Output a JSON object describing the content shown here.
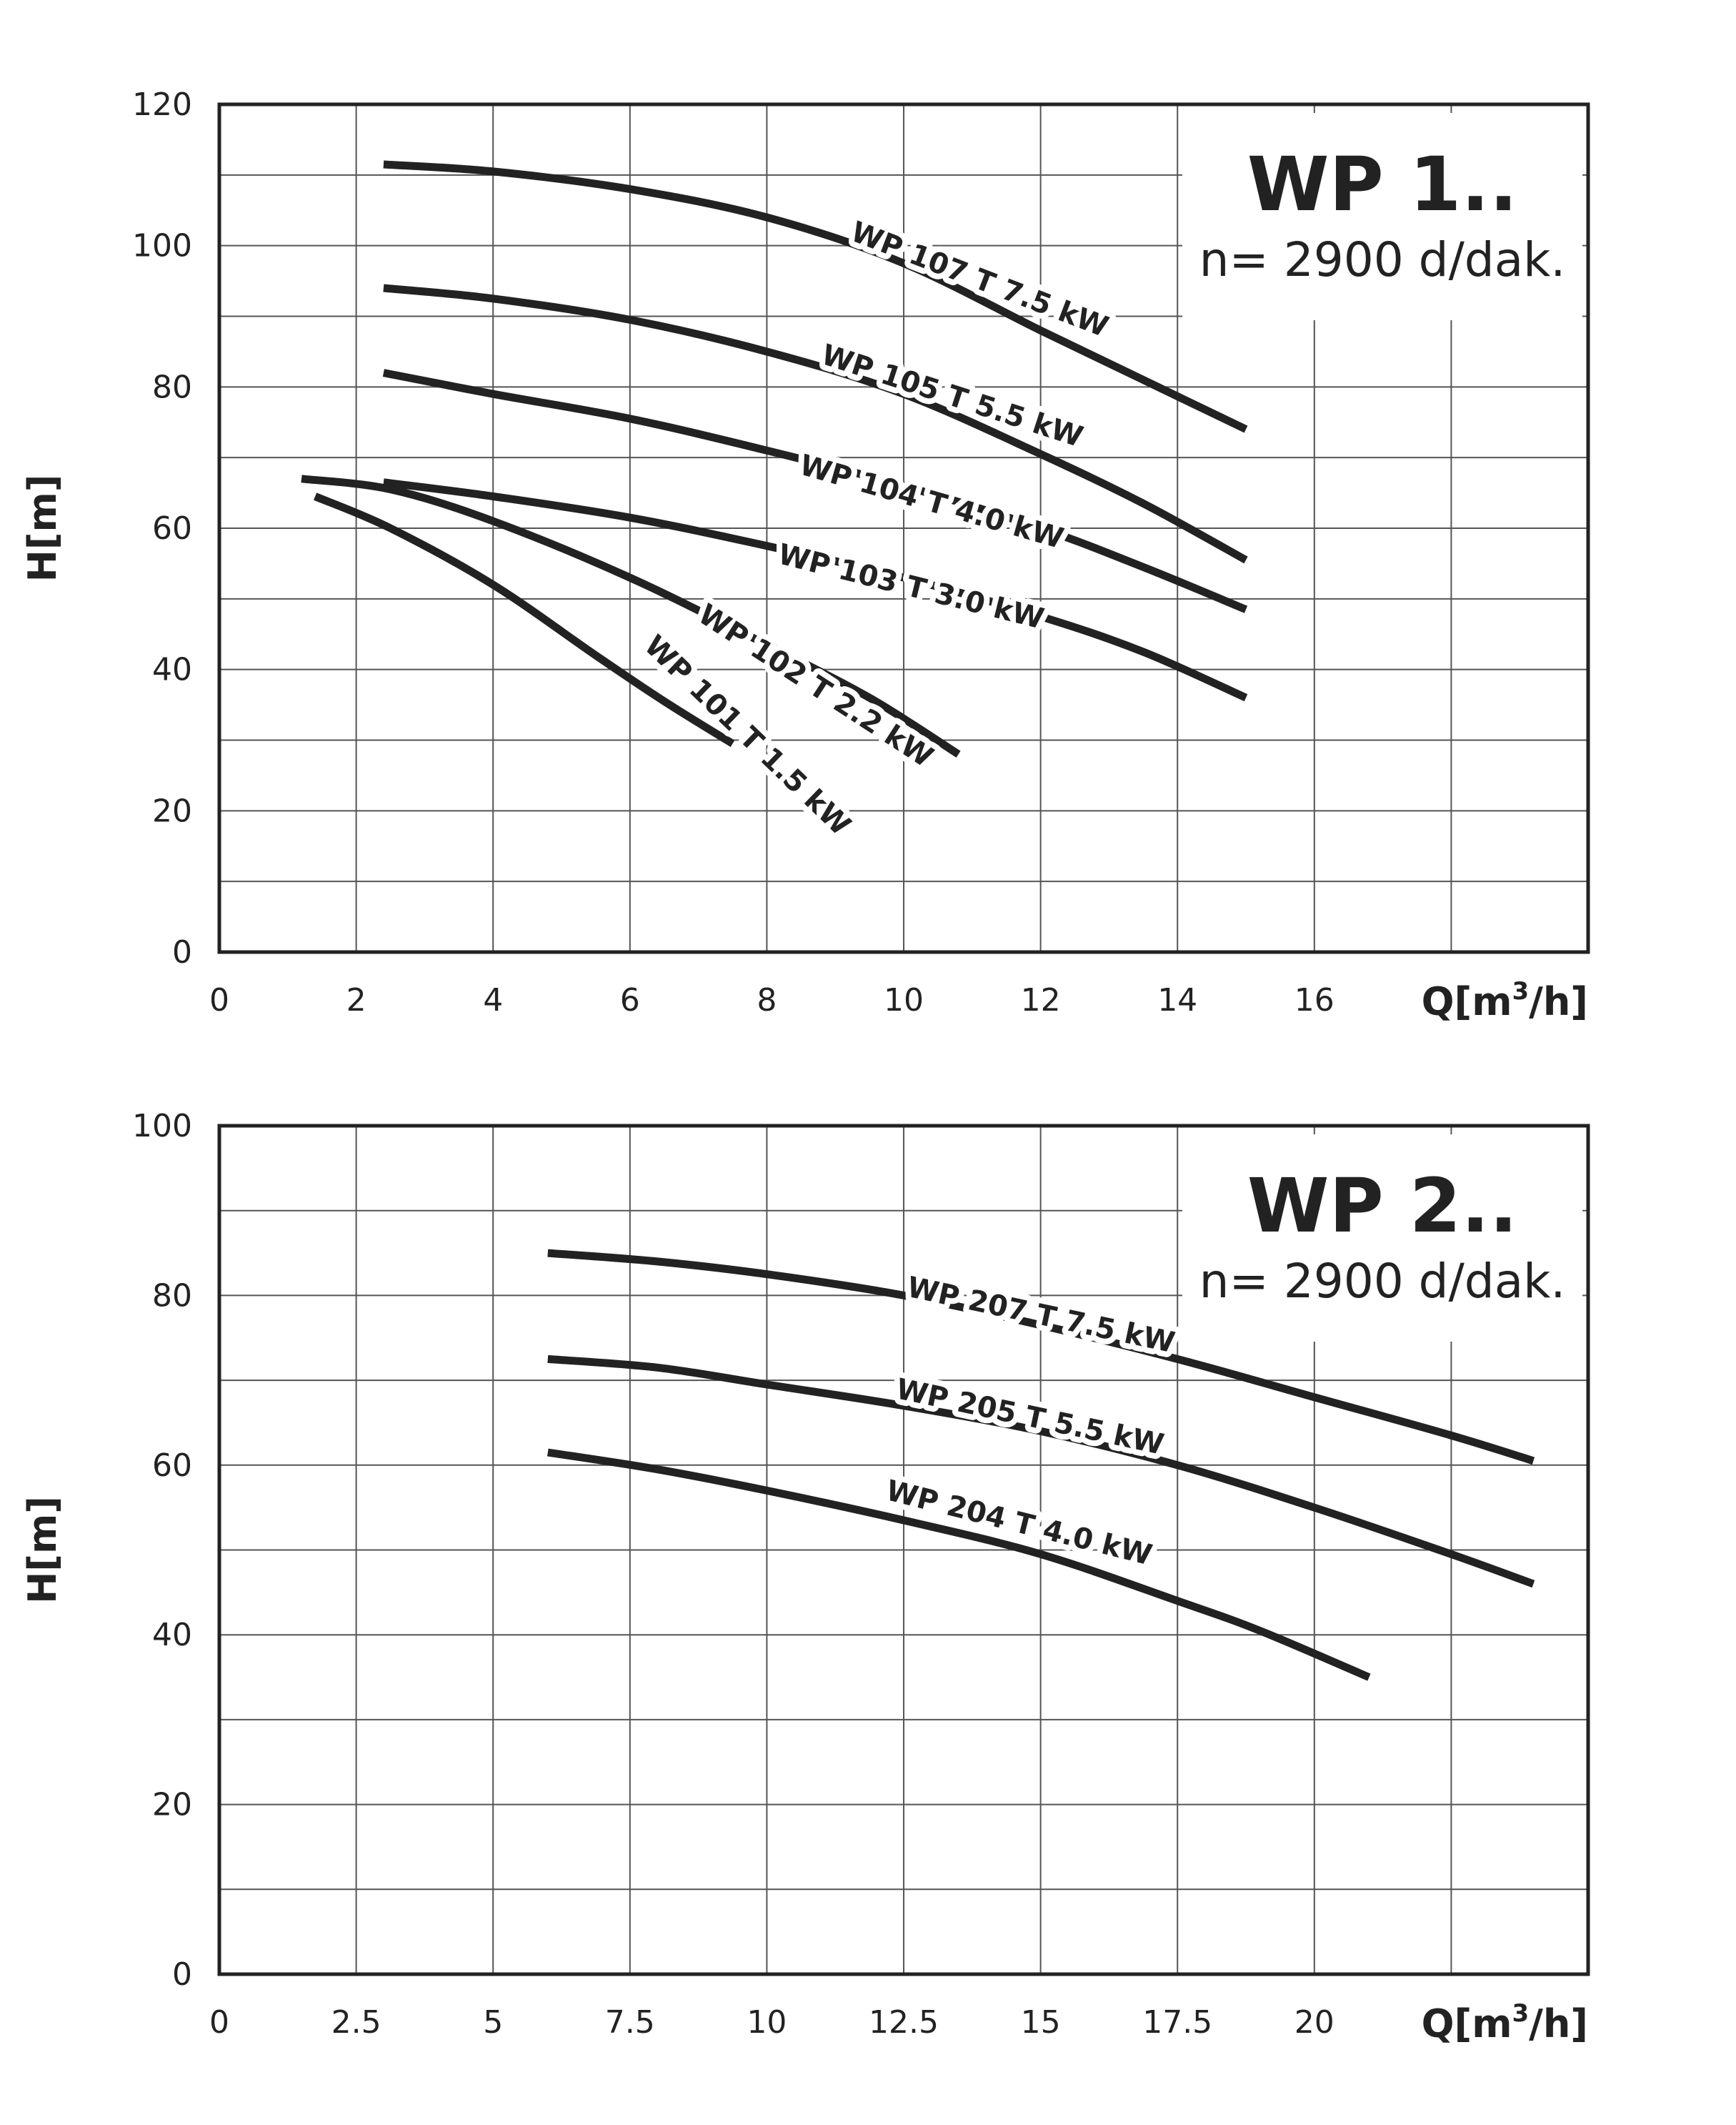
{
  "colors": {
    "ink": "#222222",
    "grid": "#555555",
    "background": "#ffffff"
  },
  "chart_data": [
    {
      "type": "line",
      "title": "WP 1..",
      "subtitle": "n= 2900 d/dak.",
      "xlabel": "Q[m",
      "xlabel_sup": "3",
      "xlabel_tail": "/h]",
      "ylabel": "H[m]",
      "xlim": [
        0,
        20
      ],
      "ylim": [
        0,
        120
      ],
      "x_ticks": [
        0,
        2,
        4,
        6,
        8,
        10,
        12,
        14,
        16
      ],
      "x_tick_labels": [
        "0",
        "2",
        "4",
        "6",
        "8",
        "10",
        "12",
        "14",
        "16"
      ],
      "y_ticks": [
        0,
        20,
        40,
        60,
        80,
        100,
        120
      ],
      "y_tick_labels": [
        "0",
        "20",
        "40",
        "60",
        "80",
        "100",
        "120"
      ],
      "x_grid": [
        0,
        2,
        4,
        6,
        8,
        10,
        12,
        14,
        16,
        18,
        20
      ],
      "y_grid": [
        0,
        10,
        20,
        30,
        40,
        50,
        60,
        70,
        80,
        90,
        100,
        110,
        120
      ],
      "grid": true,
      "series": [
        {
          "name": "WP 107 T 7.5 kW",
          "label_x": 11.1,
          "label_y": 95,
          "label_angle": 21,
          "x": [
            2.4,
            4,
            6,
            8,
            10,
            12,
            13.5,
            15
          ],
          "y": [
            111.5,
            110.5,
            108,
            104,
            97.5,
            88,
            81,
            74
          ]
        },
        {
          "name": "WP 105 T 5.5 kW",
          "label_x": 10.7,
          "label_y": 78.5,
          "label_angle": 18,
          "x": [
            2.4,
            4,
            6,
            8,
            10,
            12,
            13.5,
            15
          ],
          "y": [
            94,
            92.5,
            89.5,
            85,
            79,
            70.5,
            63.5,
            55.5
          ]
        },
        {
          "name": "WP 104 T 4.0 kW",
          "label_x": 10.4,
          "label_y": 63.5,
          "label_angle": 16,
          "x": [
            2.4,
            4,
            6,
            8,
            10,
            12,
            13.5,
            15
          ],
          "y": [
            82,
            79,
            75.5,
            71,
            66,
            60,
            54.5,
            48.5
          ]
        },
        {
          "name": "WP 103 T 3.0 kW",
          "label_x": 10.1,
          "label_y": 51.5,
          "label_angle": 14,
          "x": [
            2.4,
            4,
            6,
            8,
            10,
            12,
            13.5,
            15
          ],
          "y": [
            66.5,
            64.5,
            61.5,
            57.5,
            53,
            47.5,
            42.5,
            36
          ]
        },
        {
          "name": "WP 102 T 2.2 kW",
          "label_x": 8.7,
          "label_y": 37.5,
          "label_angle": 33,
          "x": [
            1.2,
            2.5,
            4,
            6,
            8,
            9.5,
            10.8
          ],
          "y": [
            67,
            65.5,
            61,
            53,
            43.5,
            36,
            28
          ]
        },
        {
          "name": "WP 101 T 1.5 kW",
          "label_x": 7.7,
          "label_y": 30.5,
          "label_angle": 44,
          "x": [
            1.4,
            2.5,
            4,
            5.5,
            6.5,
            7.5
          ],
          "y": [
            64.5,
            60,
            52,
            42,
            35.5,
            29.5
          ]
        }
      ]
    },
    {
      "type": "line",
      "title": "WP 2..",
      "subtitle": "n= 2900 d/dak.",
      "xlabel": "Q[m",
      "xlabel_sup": "3",
      "xlabel_tail": "/h]",
      "ylabel": "H[m]",
      "xlim": [
        0,
        25
      ],
      "ylim": [
        0,
        100
      ],
      "x_ticks": [
        0,
        2.5,
        5,
        7.5,
        10,
        12.5,
        15,
        17.5,
        20
      ],
      "x_tick_labels": [
        "0",
        "2.5",
        "5",
        "7.5",
        "10",
        "12.5",
        "15",
        "17.5",
        "20"
      ],
      "y_ticks": [
        0,
        20,
        40,
        60,
        80,
        100
      ],
      "y_tick_labels": [
        "0",
        "20",
        "40",
        "60",
        "80",
        "100"
      ],
      "x_grid": [
        0,
        2.5,
        5,
        7.5,
        10,
        12.5,
        15,
        17.5,
        20,
        22.5,
        25
      ],
      "y_grid": [
        0,
        10,
        20,
        30,
        40,
        50,
        60,
        70,
        80,
        90,
        100
      ],
      "grid": true,
      "series": [
        {
          "name": "WP 207 T 7.5 kW",
          "label_x": 15,
          "label_y": 77.5,
          "label_angle": 12,
          "x": [
            6,
            8,
            10,
            12.5,
            15,
            17.5,
            20,
            22.5,
            24
          ],
          "y": [
            85,
            84,
            82.5,
            80,
            76.5,
            72.5,
            68,
            63.5,
            60.5
          ]
        },
        {
          "name": "WP 205 T 5.5 kW",
          "label_x": 14.8,
          "label_y": 65.5,
          "label_angle": 12,
          "x": [
            6,
            8,
            10,
            12.5,
            15,
            17.5,
            20,
            22.5,
            24
          ],
          "y": [
            72.5,
            71.5,
            69.5,
            67,
            64,
            60,
            55,
            49.5,
            46
          ]
        },
        {
          "name": "WP 204 T 4.0 kW",
          "label_x": 14.6,
          "label_y": 53,
          "label_angle": 14,
          "x": [
            6,
            8,
            10,
            12.5,
            15,
            17.5,
            19,
            21
          ],
          "y": [
            61.5,
            59.5,
            57,
            53.5,
            49.5,
            44,
            40.5,
            35
          ]
        }
      ]
    }
  ]
}
